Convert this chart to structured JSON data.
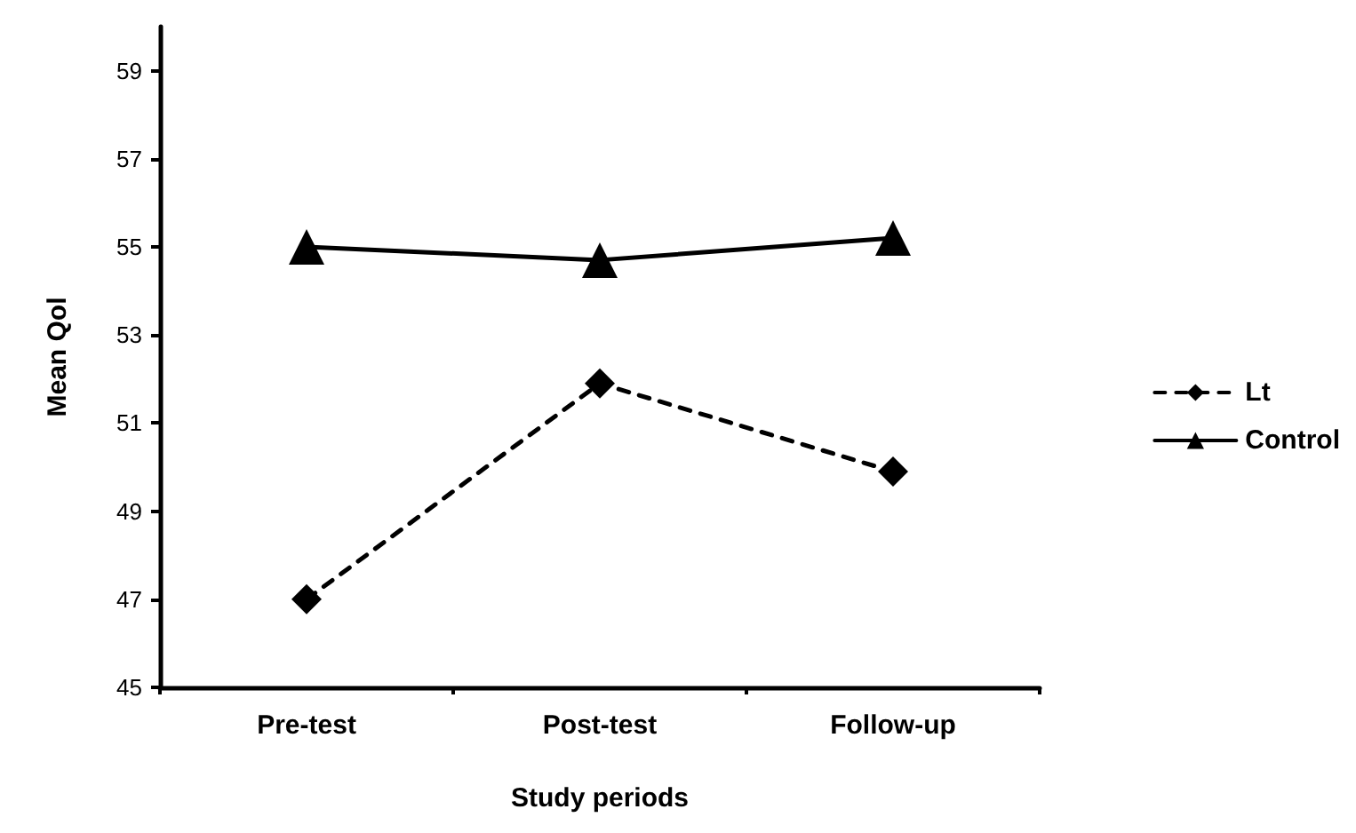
{
  "chart_data": {
    "type": "line",
    "xlabel": "Study periods",
    "ylabel": "Mean Qol",
    "categories": [
      "Pre-test",
      "Post-test",
      "Follow-up"
    ],
    "series": [
      {
        "name": "Lt",
        "color": "#000000",
        "values": [
          47,
          51.9,
          49.9
        ],
        "marker": "diamond",
        "line_style": "dashed"
      },
      {
        "name": "Control",
        "color": "#000000",
        "values": [
          55,
          54.7,
          55.2
        ],
        "marker": "triangle",
        "line_style": "solid"
      }
    ],
    "ylim": [
      45,
      60
    ],
    "yticks": [
      45,
      47,
      49,
      51,
      53,
      55,
      57,
      59
    ],
    "grid": false,
    "legend": "right"
  }
}
